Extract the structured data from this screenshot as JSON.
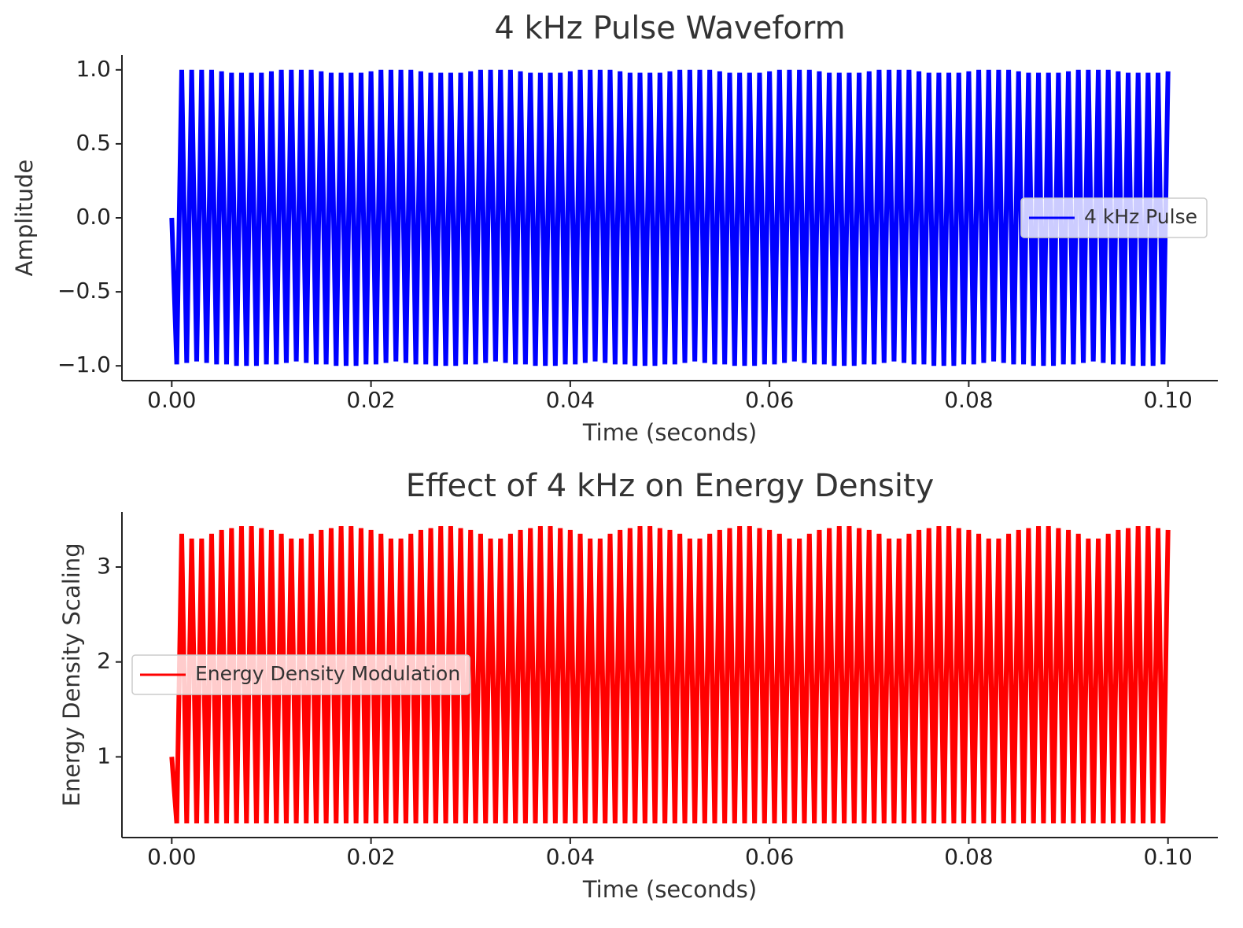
{
  "chart_data": [
    {
      "type": "line",
      "title": "4 kHz Pulse Waveform",
      "x_label": "Time (seconds)",
      "y_label": "Amplitude",
      "xlim": [
        -0.005,
        0.105
      ],
      "ylim": [
        -1.1,
        1.1
      ],
      "xticks": [
        {
          "value": 0,
          "label": "0.00"
        },
        {
          "value": 0.02,
          "label": "0.02"
        },
        {
          "value": 0.04,
          "label": "0.04"
        },
        {
          "value": 0.06,
          "label": "0.06"
        },
        {
          "value": 0.08,
          "label": "0.08"
        },
        {
          "value": 0.1,
          "label": "0.10"
        }
      ],
      "yticks": [
        {
          "value": -1,
          "label": "−1.0"
        },
        {
          "value": -0.5,
          "label": "−0.5"
        },
        {
          "value": 0,
          "label": "0.0"
        },
        {
          "value": 0.5,
          "label": "0.5"
        },
        {
          "value": 1,
          "label": "1.0"
        }
      ],
      "legend": "center right",
      "x": [
        0,
        0.0005,
        0.001,
        0.0015,
        0.002,
        0.0025,
        0.003,
        0.0035,
        0.004,
        0.0045,
        0.005,
        0.0055,
        0.006,
        0.0065,
        0.007,
        0.0075,
        0.008,
        0.0085,
        0.009,
        0.0095,
        0.01,
        0.0105,
        0.011,
        0.0115,
        0.012,
        0.0125,
        0.013,
        0.0135,
        0.014,
        0.0145,
        0.015,
        0.0155,
        0.016,
        0.0165,
        0.017,
        0.0175,
        0.018,
        0.0185,
        0.019,
        0.0195,
        0.02,
        0.0205,
        0.021,
        0.0215,
        0.022,
        0.0225,
        0.023,
        0.0235,
        0.024,
        0.0245,
        0.025,
        0.0255,
        0.026,
        0.0265,
        0.027,
        0.0275,
        0.028,
        0.0285,
        0.029,
        0.0295,
        0.03,
        0.0305,
        0.031,
        0.0315,
        0.032,
        0.0325,
        0.033,
        0.0335,
        0.034,
        0.0345,
        0.035,
        0.0355,
        0.036,
        0.0365,
        0.037,
        0.0375,
        0.038,
        0.0385,
        0.039,
        0.0395,
        0.04,
        0.0405,
        0.041,
        0.0415,
        0.042,
        0.0425,
        0.043,
        0.0435,
        0.044,
        0.0445,
        0.045,
        0.0455,
        0.046,
        0.0465,
        0.047,
        0.0475,
        0.048,
        0.0485,
        0.049,
        0.0495,
        0.05,
        0.0505,
        0.051,
        0.0515,
        0.052,
        0.0525,
        0.053,
        0.0535,
        0.054,
        0.0545,
        0.055,
        0.0555,
        0.056,
        0.0565,
        0.057,
        0.0575,
        0.058,
        0.0585,
        0.059,
        0.0595,
        0.06,
        0.0605,
        0.061,
        0.0615,
        0.062,
        0.0625,
        0.063,
        0.0635,
        0.064,
        0.0645,
        0.065,
        0.0655,
        0.066,
        0.0665,
        0.067,
        0.0675,
        0.068,
        0.0685,
        0.069,
        0.0695,
        0.07,
        0.0705,
        0.071,
        0.0715,
        0.072,
        0.0725,
        0.073,
        0.0735,
        0.074,
        0.0745,
        0.075,
        0.0755,
        0.076,
        0.0765,
        0.077,
        0.0775,
        0.078,
        0.0785,
        0.079,
        0.0795,
        0.08,
        0.0805,
        0.081,
        0.0815,
        0.082,
        0.0825,
        0.083,
        0.0835,
        0.084,
        0.0845,
        0.085,
        0.0855,
        0.086,
        0.0865,
        0.087,
        0.0875,
        0.088,
        0.0885,
        0.089,
        0.0895,
        0.09,
        0.0905,
        0.091,
        0.0915,
        0.092,
        0.0925,
        0.093,
        0.0935,
        0.094,
        0.0945,
        0.095,
        0.0955,
        0.096,
        0.0965,
        0.097,
        0.0975,
        0.098,
        0.0985,
        0.099,
        0.0995,
        0.1
      ],
      "series": [
        {
          "name": "4 kHz Pulse",
          "color": "#0000ff",
          "values": [
            0,
            -0.99,
            1,
            -0.98,
            1,
            -0.97,
            1,
            -0.98,
            1,
            -0.99,
            0.99,
            -0.99,
            0.98,
            -1,
            0.98,
            -1,
            0.98,
            -1,
            0.98,
            -0.99,
            0.99,
            -0.99,
            1,
            -0.98,
            1,
            -0.97,
            1,
            -0.98,
            1,
            -0.99,
            0.99,
            -0.99,
            0.98,
            -1,
            0.98,
            -1,
            0.98,
            -1,
            0.98,
            -0.99,
            0.99,
            -0.99,
            1,
            -0.98,
            1,
            -0.97,
            1,
            -0.98,
            1,
            -0.99,
            0.99,
            -0.99,
            0.98,
            -1,
            0.98,
            -1,
            0.98,
            -1,
            0.98,
            -0.99,
            0.99,
            -0.99,
            1,
            -0.98,
            1,
            -0.97,
            1,
            -0.98,
            1,
            -0.99,
            0.99,
            -0.99,
            0.98,
            -1,
            0.98,
            -1,
            0.98,
            -1,
            0.98,
            -0.99,
            0.99,
            -0.99,
            1,
            -0.98,
            1,
            -0.97,
            1,
            -0.98,
            1,
            -0.99,
            0.99,
            -0.99,
            0.98,
            -1,
            0.98,
            -1,
            0.98,
            -1,
            0.98,
            -0.99,
            0.99,
            -0.99,
            1,
            -0.98,
            1,
            -0.97,
            1,
            -0.98,
            1,
            -0.99,
            0.99,
            -0.99,
            0.98,
            -1,
            0.98,
            -1,
            0.98,
            -1,
            0.98,
            -0.99,
            0.99,
            -0.99,
            1,
            -0.98,
            1,
            -0.97,
            1,
            -0.98,
            1,
            -0.99,
            0.99,
            -0.99,
            0.98,
            -1,
            0.98,
            -1,
            0.98,
            -1,
            0.98,
            -0.99,
            0.99,
            -0.99,
            1,
            -0.98,
            1,
            -0.97,
            1,
            -0.98,
            1,
            -0.99,
            0.99,
            -0.99,
            0.98,
            -1,
            0.98,
            -1,
            0.98,
            -1,
            0.98,
            -0.99,
            0.99,
            -0.99,
            1,
            -0.98,
            1,
            -0.97,
            1,
            -0.98,
            1,
            -0.99,
            0.99,
            -0.99,
            0.98,
            -1,
            0.98,
            -1,
            0.98,
            -1,
            0.98,
            -0.99,
            0.99,
            -0.99,
            1,
            -0.98,
            1,
            -0.97,
            1,
            -0.98,
            1,
            -0.99,
            0.99,
            -0.99,
            0.98,
            -1,
            0.98,
            -1,
            0.98,
            -1,
            0.98,
            -0.99,
            0.99
          ]
        }
      ]
    },
    {
      "type": "line",
      "title": "Effect of 4 kHz on Energy Density",
      "x_label": "Time (seconds)",
      "y_label": "Energy Density Scaling",
      "xlim": [
        -0.005,
        0.105
      ],
      "ylim": [
        0.15,
        3.58
      ],
      "xticks": [
        {
          "value": 0,
          "label": "0.00"
        },
        {
          "value": 0.02,
          "label": "0.02"
        },
        {
          "value": 0.04,
          "label": "0.04"
        },
        {
          "value": 0.06,
          "label": "0.06"
        },
        {
          "value": 0.08,
          "label": "0.08"
        },
        {
          "value": 0.1,
          "label": "0.10"
        }
      ],
      "yticks": [
        1,
        2,
        3
      ],
      "legend": "center left",
      "x": [
        0,
        0.0005,
        0.001,
        0.0015,
        0.002,
        0.0025,
        0.003,
        0.0035,
        0.004,
        0.0045,
        0.005,
        0.0055,
        0.006,
        0.0065,
        0.007,
        0.0075,
        0.008,
        0.0085,
        0.009,
        0.0095,
        0.01,
        0.0105,
        0.011,
        0.0115,
        0.012,
        0.0125,
        0.013,
        0.0135,
        0.014,
        0.0145,
        0.015,
        0.0155,
        0.016,
        0.0165,
        0.017,
        0.0175,
        0.018,
        0.0185,
        0.019,
        0.0195,
        0.02,
        0.0205,
        0.021,
        0.0215,
        0.022,
        0.0225,
        0.023,
        0.0235,
        0.024,
        0.0245,
        0.025,
        0.0255,
        0.026,
        0.0265,
        0.027,
        0.0275,
        0.028,
        0.0285,
        0.029,
        0.0295,
        0.03,
        0.0305,
        0.031,
        0.0315,
        0.032,
        0.0325,
        0.033,
        0.0335,
        0.034,
        0.0345,
        0.035,
        0.0355,
        0.036,
        0.0365,
        0.037,
        0.0375,
        0.038,
        0.0385,
        0.039,
        0.0395,
        0.04,
        0.0405,
        0.041,
        0.0415,
        0.042,
        0.0425,
        0.043,
        0.0435,
        0.044,
        0.0445,
        0.045,
        0.0455,
        0.046,
        0.0465,
        0.047,
        0.0475,
        0.048,
        0.0485,
        0.049,
        0.0495,
        0.05,
        0.0505,
        0.051,
        0.0515,
        0.052,
        0.0525,
        0.053,
        0.0535,
        0.054,
        0.0545,
        0.055,
        0.0555,
        0.056,
        0.0565,
        0.057,
        0.0575,
        0.058,
        0.0585,
        0.059,
        0.0595,
        0.06,
        0.0605,
        0.061,
        0.0615,
        0.062,
        0.0625,
        0.063,
        0.0635,
        0.064,
        0.0645,
        0.065,
        0.0655,
        0.066,
        0.0665,
        0.067,
        0.0675,
        0.068,
        0.0685,
        0.069,
        0.0695,
        0.07,
        0.0705,
        0.071,
        0.0715,
        0.072,
        0.0725,
        0.073,
        0.0735,
        0.074,
        0.0745,
        0.075,
        0.0755,
        0.076,
        0.0765,
        0.077,
        0.0775,
        0.078,
        0.0785,
        0.079,
        0.0795,
        0.08,
        0.0805,
        0.081,
        0.0815,
        0.082,
        0.0825,
        0.083,
        0.0835,
        0.084,
        0.0845,
        0.085,
        0.0855,
        0.086,
        0.0865,
        0.087,
        0.0875,
        0.088,
        0.0885,
        0.089,
        0.0895,
        0.09,
        0.0905,
        0.091,
        0.0915,
        0.092,
        0.0925,
        0.093,
        0.0935,
        0.094,
        0.0945,
        0.095,
        0.0955,
        0.096,
        0.0965,
        0.097,
        0.0975,
        0.098,
        0.0985,
        0.099,
        0.0995,
        0.1
      ],
      "series": [
        {
          "name": "Energy Density Modulation",
          "color": "#ff0000",
          "values": [
            1,
            0.3,
            3.35,
            0.3,
            3.3,
            0.3,
            3.3,
            0.3,
            3.35,
            0.3,
            3.39,
            0.3,
            3.41,
            0.3,
            3.43,
            0.3,
            3.43,
            0.3,
            3.41,
            0.3,
            3.39,
            0.3,
            3.35,
            0.3,
            3.3,
            0.3,
            3.3,
            0.3,
            3.35,
            0.3,
            3.39,
            0.3,
            3.41,
            0.3,
            3.43,
            0.3,
            3.43,
            0.3,
            3.41,
            0.3,
            3.39,
            0.3,
            3.35,
            0.3,
            3.3,
            0.3,
            3.3,
            0.3,
            3.35,
            0.3,
            3.39,
            0.3,
            3.41,
            0.3,
            3.43,
            0.3,
            3.43,
            0.3,
            3.41,
            0.3,
            3.39,
            0.3,
            3.35,
            0.3,
            3.3,
            0.3,
            3.3,
            0.3,
            3.35,
            0.3,
            3.39,
            0.3,
            3.41,
            0.3,
            3.43,
            0.3,
            3.43,
            0.3,
            3.41,
            0.3,
            3.39,
            0.3,
            3.35,
            0.3,
            3.3,
            0.3,
            3.3,
            0.3,
            3.35,
            0.3,
            3.39,
            0.3,
            3.41,
            0.3,
            3.43,
            0.3,
            3.43,
            0.3,
            3.41,
            0.3,
            3.39,
            0.3,
            3.35,
            0.3,
            3.3,
            0.3,
            3.3,
            0.3,
            3.35,
            0.3,
            3.39,
            0.3,
            3.41,
            0.3,
            3.43,
            0.3,
            3.43,
            0.3,
            3.41,
            0.3,
            3.39,
            0.3,
            3.35,
            0.3,
            3.3,
            0.3,
            3.3,
            0.3,
            3.35,
            0.3,
            3.39,
            0.3,
            3.41,
            0.3,
            3.43,
            0.3,
            3.43,
            0.3,
            3.41,
            0.3,
            3.39,
            0.3,
            3.35,
            0.3,
            3.3,
            0.3,
            3.3,
            0.3,
            3.35,
            0.3,
            3.39,
            0.3,
            3.41,
            0.3,
            3.43,
            0.3,
            3.43,
            0.3,
            3.41,
            0.3,
            3.39,
            0.3,
            3.35,
            0.3,
            3.3,
            0.3,
            3.3,
            0.3,
            3.35,
            0.3,
            3.39,
            0.3,
            3.41,
            0.3,
            3.43,
            0.3,
            3.43,
            0.3,
            3.41,
            0.3,
            3.39,
            0.3,
            3.35,
            0.3,
            3.3,
            0.3,
            3.3,
            0.3,
            3.35,
            0.3,
            3.39,
            0.3,
            3.41,
            0.3,
            3.43,
            0.3,
            3.43,
            0.3,
            3.41,
            0.3,
            3.39
          ]
        }
      ]
    }
  ]
}
